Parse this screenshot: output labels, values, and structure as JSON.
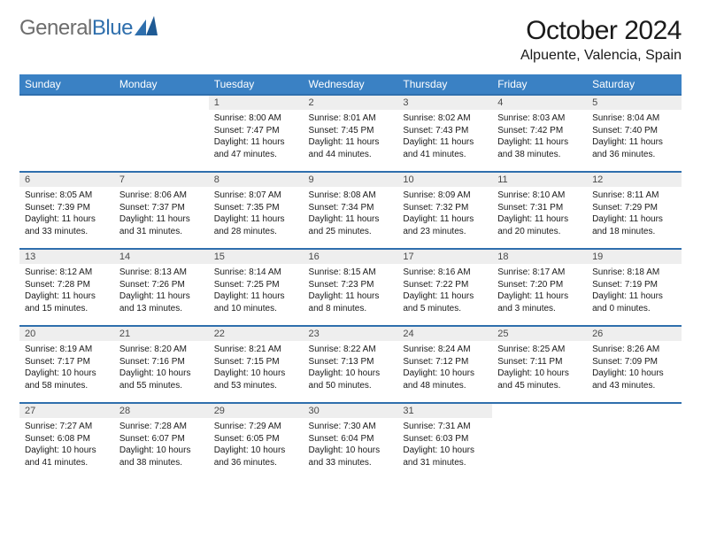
{
  "brand": {
    "part1": "General",
    "part2": "Blue"
  },
  "title": "October 2024",
  "location": "Alpuente, Valencia, Spain",
  "colors": {
    "header_bg": "#3a81c4",
    "accent": "#2f6fad",
    "daynum_bg": "#eeeeee",
    "text": "#1a1a1a",
    "brand_gray": "#6d6d6d"
  },
  "day_headers": [
    "Sunday",
    "Monday",
    "Tuesday",
    "Wednesday",
    "Thursday",
    "Friday",
    "Saturday"
  ],
  "weeks": [
    [
      null,
      null,
      {
        "n": "1",
        "sr": "8:00 AM",
        "ss": "7:47 PM",
        "dl": "11 hours and 47 minutes."
      },
      {
        "n": "2",
        "sr": "8:01 AM",
        "ss": "7:45 PM",
        "dl": "11 hours and 44 minutes."
      },
      {
        "n": "3",
        "sr": "8:02 AM",
        "ss": "7:43 PM",
        "dl": "11 hours and 41 minutes."
      },
      {
        "n": "4",
        "sr": "8:03 AM",
        "ss": "7:42 PM",
        "dl": "11 hours and 38 minutes."
      },
      {
        "n": "5",
        "sr": "8:04 AM",
        "ss": "7:40 PM",
        "dl": "11 hours and 36 minutes."
      }
    ],
    [
      {
        "n": "6",
        "sr": "8:05 AM",
        "ss": "7:39 PM",
        "dl": "11 hours and 33 minutes."
      },
      {
        "n": "7",
        "sr": "8:06 AM",
        "ss": "7:37 PM",
        "dl": "11 hours and 31 minutes."
      },
      {
        "n": "8",
        "sr": "8:07 AM",
        "ss": "7:35 PM",
        "dl": "11 hours and 28 minutes."
      },
      {
        "n": "9",
        "sr": "8:08 AM",
        "ss": "7:34 PM",
        "dl": "11 hours and 25 minutes."
      },
      {
        "n": "10",
        "sr": "8:09 AM",
        "ss": "7:32 PM",
        "dl": "11 hours and 23 minutes."
      },
      {
        "n": "11",
        "sr": "8:10 AM",
        "ss": "7:31 PM",
        "dl": "11 hours and 20 minutes."
      },
      {
        "n": "12",
        "sr": "8:11 AM",
        "ss": "7:29 PM",
        "dl": "11 hours and 18 minutes."
      }
    ],
    [
      {
        "n": "13",
        "sr": "8:12 AM",
        "ss": "7:28 PM",
        "dl": "11 hours and 15 minutes."
      },
      {
        "n": "14",
        "sr": "8:13 AM",
        "ss": "7:26 PM",
        "dl": "11 hours and 13 minutes."
      },
      {
        "n": "15",
        "sr": "8:14 AM",
        "ss": "7:25 PM",
        "dl": "11 hours and 10 minutes."
      },
      {
        "n": "16",
        "sr": "8:15 AM",
        "ss": "7:23 PM",
        "dl": "11 hours and 8 minutes."
      },
      {
        "n": "17",
        "sr": "8:16 AM",
        "ss": "7:22 PM",
        "dl": "11 hours and 5 minutes."
      },
      {
        "n": "18",
        "sr": "8:17 AM",
        "ss": "7:20 PM",
        "dl": "11 hours and 3 minutes."
      },
      {
        "n": "19",
        "sr": "8:18 AM",
        "ss": "7:19 PM",
        "dl": "11 hours and 0 minutes."
      }
    ],
    [
      {
        "n": "20",
        "sr": "8:19 AM",
        "ss": "7:17 PM",
        "dl": "10 hours and 58 minutes."
      },
      {
        "n": "21",
        "sr": "8:20 AM",
        "ss": "7:16 PM",
        "dl": "10 hours and 55 minutes."
      },
      {
        "n": "22",
        "sr": "8:21 AM",
        "ss": "7:15 PM",
        "dl": "10 hours and 53 minutes."
      },
      {
        "n": "23",
        "sr": "8:22 AM",
        "ss": "7:13 PM",
        "dl": "10 hours and 50 minutes."
      },
      {
        "n": "24",
        "sr": "8:24 AM",
        "ss": "7:12 PM",
        "dl": "10 hours and 48 minutes."
      },
      {
        "n": "25",
        "sr": "8:25 AM",
        "ss": "7:11 PM",
        "dl": "10 hours and 45 minutes."
      },
      {
        "n": "26",
        "sr": "8:26 AM",
        "ss": "7:09 PM",
        "dl": "10 hours and 43 minutes."
      }
    ],
    [
      {
        "n": "27",
        "sr": "7:27 AM",
        "ss": "6:08 PM",
        "dl": "10 hours and 41 minutes."
      },
      {
        "n": "28",
        "sr": "7:28 AM",
        "ss": "6:07 PM",
        "dl": "10 hours and 38 minutes."
      },
      {
        "n": "29",
        "sr": "7:29 AM",
        "ss": "6:05 PM",
        "dl": "10 hours and 36 minutes."
      },
      {
        "n": "30",
        "sr": "7:30 AM",
        "ss": "6:04 PM",
        "dl": "10 hours and 33 minutes."
      },
      {
        "n": "31",
        "sr": "7:31 AM",
        "ss": "6:03 PM",
        "dl": "10 hours and 31 minutes."
      },
      null,
      null
    ]
  ],
  "labels": {
    "sunrise": "Sunrise:",
    "sunset": "Sunset:",
    "daylight": "Daylight:"
  }
}
